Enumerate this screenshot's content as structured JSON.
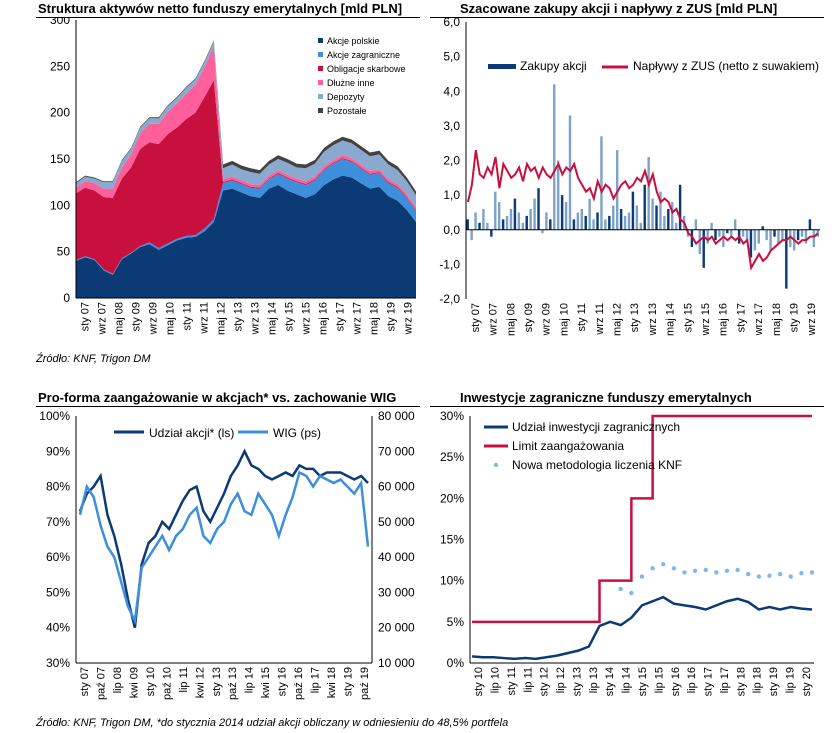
{
  "sources": {
    "top": "Źródło: KNF, Trigon DM",
    "bottom": "Źródło: KNF, Trigon DM, *do stycznia 2014 udział akcji obliczany w odniesieniu do 48,5% portfela"
  },
  "chart_data": [
    {
      "id": "assets",
      "type": "area",
      "title": "Struktura aktywów netto funduszy emerytalnych [mld PLN]",
      "ylim": [
        0,
        300
      ],
      "yticks": [
        "0",
        "50",
        "100",
        "150",
        "200",
        "250",
        "300"
      ],
      "xticks": [
        "sty 07",
        "wrz 07",
        "maj 08",
        "sty 09",
        "wrz 09",
        "maj 10",
        "sty 11",
        "wrz 11",
        "maj 12",
        "sty 13",
        "wrz 13",
        "maj 14",
        "sty 15",
        "wrz 15",
        "maj 16",
        "sty 17",
        "wrz 17",
        "maj 18",
        "sty 19",
        "wrz 19"
      ],
      "series": [
        {
          "name": "Akcje polskie",
          "color": "#0b3a75",
          "values": [
            40,
            44,
            41,
            30,
            25,
            42,
            48,
            55,
            58,
            52,
            57,
            62,
            65,
            66,
            72,
            82,
            116,
            118,
            114,
            110,
            108,
            118,
            122,
            116,
            112,
            108,
            112,
            122,
            128,
            132,
            130,
            124,
            118,
            120,
            110,
            105,
            95,
            82
          ]
        },
        {
          "name": "Akcje zagraniczne",
          "color": "#3d8fdc",
          "values": [
            1,
            1,
            1,
            1,
            1,
            1,
            1,
            1,
            2,
            2,
            2,
            2,
            2,
            2,
            3,
            3,
            8,
            9,
            9,
            9,
            10,
            10,
            12,
            13,
            13,
            14,
            15,
            16,
            17,
            18,
            17,
            16,
            15,
            15,
            14,
            14,
            13,
            12
          ]
        },
        {
          "name": "Obligacje skarbowe",
          "color": "#c8103e",
          "values": [
            72,
            74,
            74,
            78,
            82,
            86,
            92,
            105,
            108,
            112,
            118,
            120,
            126,
            132,
            142,
            150,
            1,
            1,
            1,
            1,
            1,
            1,
            1,
            1,
            1,
            1,
            1,
            1,
            1,
            1,
            1,
            1,
            1,
            1,
            1,
            1,
            1,
            1
          ]
        },
        {
          "name": "Dłużne inne",
          "color": "#ff5f9a",
          "values": [
            6,
            7,
            8,
            9,
            10,
            12,
            14,
            17,
            20,
            22,
            24,
            26,
            28,
            30,
            32,
            36,
            3,
            3,
            3,
            3,
            3,
            3,
            3,
            3,
            3,
            3,
            3,
            3,
            3,
            3,
            3,
            3,
            3,
            3,
            3,
            3,
            3,
            3
          ]
        },
        {
          "name": "Depozyty",
          "color": "#8aa9cf",
          "values": [
            5,
            5,
            5,
            7,
            7,
            7,
            6,
            6,
            6,
            6,
            6,
            6,
            6,
            6,
            6,
            6,
            12,
            13,
            12,
            13,
            12,
            12,
            12,
            13,
            12,
            14,
            14,
            16,
            16,
            16,
            16,
            16,
            16,
            16,
            16,
            15,
            14,
            13
          ]
        },
        {
          "name": "Pozostałe",
          "color": "#424242",
          "values": [
            1,
            1,
            1,
            1,
            1,
            1,
            1,
            1,
            1,
            1,
            1,
            1,
            1,
            1,
            1,
            1,
            4,
            4,
            4,
            4,
            4,
            4,
            4,
            4,
            4,
            4,
            4,
            4,
            4,
            4,
            4,
            4,
            4,
            4,
            4,
            4,
            4,
            4
          ]
        }
      ]
    },
    {
      "id": "zus",
      "type": "bar",
      "title": "Szacowane zakupy akcji i napływy z ZUS [mld PLN]",
      "ylim": [
        -2,
        6
      ],
      "yticks": [
        "-2,0",
        "-1,0",
        "0,0",
        "1,0",
        "2,0",
        "3,0",
        "4,0",
        "5,0",
        "6,0"
      ],
      "xticks": [
        "sty 07",
        "wrz 07",
        "maj 08",
        "sty 09",
        "wrz 09",
        "maj 10",
        "sty 11",
        "wrz 11",
        "maj 12",
        "sty 13",
        "wrz 13",
        "maj 14",
        "sty 15",
        "wrz 15",
        "maj 16",
        "sty 17",
        "wrz 17",
        "maj 18",
        "sty 19",
        "wrz 19"
      ],
      "series": [
        {
          "name": "Zakupy akcji",
          "color": "#0b3a75",
          "values": [
            0.3,
            -0.3,
            0.5,
            0.2,
            0.6,
            0.2,
            -0.2,
            1.1,
            0.8,
            0.3,
            0.4,
            0.6,
            0.9,
            0.5,
            0.2,
            0.4,
            0.6,
            0.9,
            1.2,
            -0.1,
            0.5,
            0.3,
            4.2,
            2.0,
            1.0,
            0.8,
            3.3,
            0.3,
            0.5,
            0.6,
            0.4,
            0.9,
            0.3,
            0.5,
            2.7,
            0.3,
            0.4,
            0.7,
            2.3,
            0.6,
            0.4,
            0.5,
            1.1,
            0.7,
            0.2,
            1.3,
            2.1,
            0.9,
            0.7,
            1.1,
            0.4,
            0.6,
            0.8,
            0.2,
            1.3,
            0.4,
            -0.2,
            -0.5,
            0.3,
            -0.7,
            -1.1,
            -0.4,
            0.2,
            -0.3,
            -0.2,
            -0.5,
            -0.1,
            -0.2,
            0.3,
            -0.4,
            -0.2,
            -0.3,
            -0.8,
            -0.6,
            -0.4,
            0.1,
            -0.3,
            -0.6,
            -0.2,
            -0.4,
            -0.3,
            -1.7,
            -0.5,
            -0.6,
            -0.3,
            -0.2,
            -0.4,
            0.3,
            -0.5,
            -0.2
          ]
        },
        {
          "name": "Napływy z ZUS (netto z suwakiem)",
          "color": "#c8103e",
          "values": [
            0.8,
            1.3,
            2.3,
            1.6,
            1.5,
            1.8,
            1.6,
            2.1,
            1.2,
            1.9,
            1.7,
            1.5,
            1.6,
            1.8,
            1.4,
            1.9,
            1.7,
            1.8,
            1.5,
            1.8,
            1.6,
            1.5,
            1.7,
            1.9,
            1.6,
            1.8,
            1.7,
            1.9,
            1.5,
            1.3,
            1.1,
            1.2,
            0.9,
            1.4,
            1.1,
            1.3,
            1.2,
            0.9,
            1.1,
            1.3,
            1.4,
            1.2,
            1.3,
            1.5,
            1.4,
            1.7,
            1.3,
            1.6,
            1.1,
            0.8,
            0.9,
            0.8,
            0.5,
            0.6,
            0.3,
            0.2,
            -0.1,
            -0.2,
            -0.4,
            -0.3,
            -0.2,
            -0.3,
            -0.2,
            -0.4,
            -0.3,
            -0.2,
            -0.3,
            -0.2,
            -0.3,
            -0.2,
            -0.4,
            -0.3,
            -1.1,
            -0.9,
            -0.7,
            -0.9,
            -0.8,
            -0.6,
            -0.5,
            -0.4,
            -0.3,
            -0.3,
            -0.2,
            -0.3,
            -0.4,
            -0.3,
            -0.3,
            -0.2,
            -0.2,
            -0.1
          ]
        }
      ]
    },
    {
      "id": "wig",
      "type": "line",
      "title": "Pro-forma zaangażowanie w akcjach* vs. zachowanie WIG",
      "ylim_left": [
        30,
        100
      ],
      "ylim_right": [
        10000,
        80000
      ],
      "yticks_left": [
        "30%",
        "40%",
        "50%",
        "60%",
        "70%",
        "80%",
        "90%",
        "100%"
      ],
      "yticks_right": [
        "10 000",
        "20 000",
        "30 000",
        "40 000",
        "50 000",
        "60 000",
        "70 000",
        "80 000"
      ],
      "xticks": [
        "sty 07",
        "paź 07",
        "lip 08",
        "kwi 09",
        "sty 10",
        "paź 10",
        "lip 11",
        "kwi 12",
        "sty 13",
        "paź 13",
        "lip 14",
        "kwi 15",
        "sty 16",
        "paź 16",
        "lip 17",
        "kwi 18",
        "sty 19",
        "paź 19"
      ],
      "series": [
        {
          "name": "Udział akcji* (ls)",
          "axis": "left",
          "color": "#0b3a75",
          "values": [
            73,
            78,
            80,
            83,
            72,
            66,
            58,
            48,
            40,
            58,
            64,
            66,
            70,
            68,
            72,
            76,
            79,
            80,
            73,
            70,
            74,
            78,
            83,
            86,
            90,
            86,
            85,
            83,
            82,
            83,
            84,
            83,
            86,
            85,
            85,
            83,
            84,
            84,
            84,
            83,
            82,
            83,
            81
          ]
        },
        {
          "name": "WIG (ps)",
          "axis": "right",
          "color": "#3d8fdc",
          "values": [
            52000,
            60000,
            57000,
            49000,
            43000,
            40000,
            33000,
            26000,
            22000,
            37000,
            40000,
            43000,
            46000,
            42000,
            46000,
            48000,
            52000,
            54000,
            46000,
            44000,
            48000,
            50000,
            55000,
            58000,
            53000,
            52000,
            58000,
            55000,
            52000,
            46000,
            52000,
            57000,
            64000,
            63000,
            60000,
            63000,
            62000,
            61000,
            62000,
            60000,
            58000,
            61000,
            43000
          ]
        }
      ]
    },
    {
      "id": "foreign",
      "type": "line",
      "title": "Inwestycje zagraniczne funduszy emerytalnych",
      "ylim": [
        0,
        30
      ],
      "yticks": [
        "0%",
        "5%",
        "10%",
        "15%",
        "20%",
        "25%",
        "30%"
      ],
      "xticks": [
        "sty 10",
        "lip 10",
        "sty 11",
        "lip 11",
        "sty 12",
        "lip 12",
        "sty 13",
        "lip 13",
        "sty 14",
        "lip 14",
        "sty 15",
        "lip 15",
        "sty 16",
        "lip 16",
        "sty 17",
        "lip 17",
        "sty 18",
        "lip 18",
        "sty 19",
        "lip 19",
        "sty 20"
      ],
      "series": [
        {
          "name": "Udział inwestycji zagranicznych",
          "color": "#0b3a75",
          "values": [
            0.8,
            0.7,
            0.7,
            0.6,
            0.5,
            0.6,
            0.5,
            0.7,
            0.9,
            1.2,
            1.5,
            2.0,
            4.5,
            5.0,
            4.6,
            5.5,
            7.0,
            7.5,
            8.0,
            7.2,
            7.0,
            6.8,
            6.5,
            7.0,
            7.5,
            7.8,
            7.4,
            6.5,
            6.8,
            6.5,
            6.8,
            6.6,
            6.5
          ]
        },
        {
          "name": "Limit zaangażowania",
          "color": "#c8103e",
          "values": [
            5,
            5,
            5,
            5,
            5,
            5,
            5,
            5,
            5,
            5,
            5,
            5,
            10,
            10,
            10,
            20,
            20,
            30,
            30,
            30,
            30,
            30,
            30,
            30,
            30,
            30,
            30,
            30,
            30,
            30,
            30,
            30,
            30
          ]
        },
        {
          "name": "Nowa metodologia liczenia KNF",
          "color": "#7fb8ee",
          "values": [
            null,
            null,
            null,
            null,
            null,
            null,
            null,
            null,
            null,
            null,
            null,
            null,
            null,
            null,
            9,
            8.5,
            10.5,
            11.5,
            12,
            11.5,
            11,
            11.2,
            11.3,
            11,
            11.2,
            11.3,
            10.8,
            10.5,
            10.6,
            10.8,
            10.5,
            10.9,
            11
          ]
        }
      ]
    }
  ]
}
